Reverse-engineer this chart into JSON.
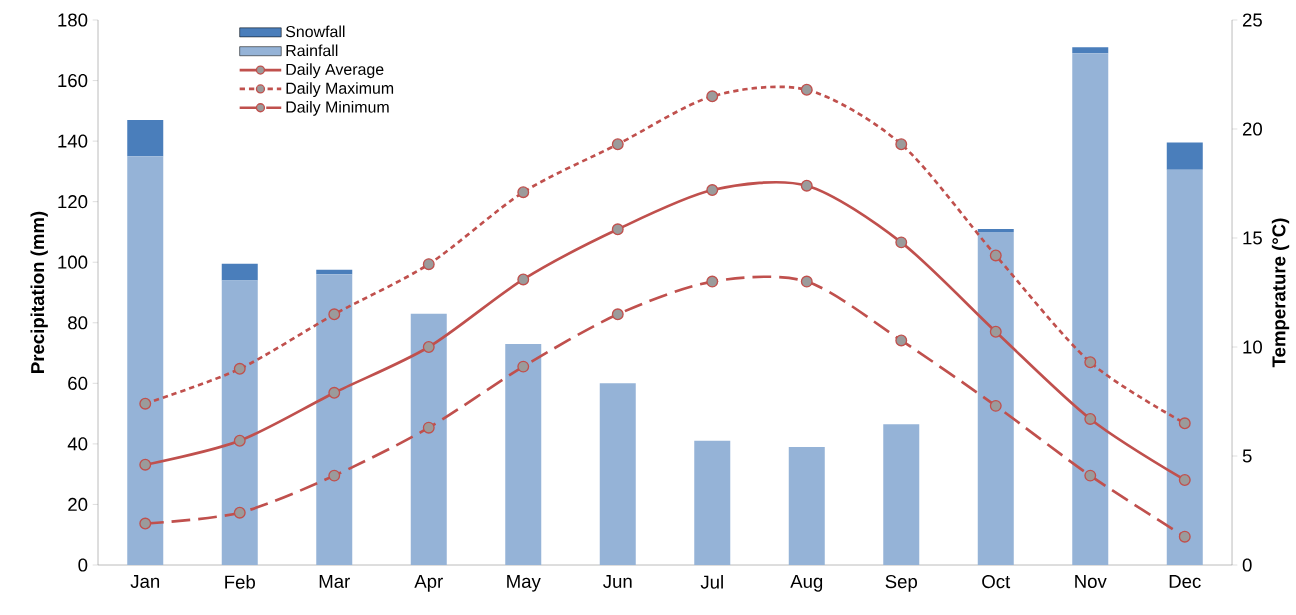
{
  "chart_data": {
    "type": "bar",
    "categories": [
      "Jan",
      "Feb",
      "Mar",
      "Apr",
      "May",
      "Jun",
      "Jul",
      "Aug",
      "Sep",
      "Oct",
      "Nov",
      "Dec"
    ],
    "stacked": true,
    "ylabel": "Precipitation (mm)",
    "y2label": "Temperature (°C)",
    "ylim": [
      0,
      180
    ],
    "yticks": [
      0,
      20,
      40,
      60,
      80,
      100,
      120,
      140,
      160,
      180
    ],
    "y2lim": [
      0,
      25
    ],
    "y2ticks": [
      0,
      5,
      10,
      15,
      20,
      25
    ],
    "legend": "top left",
    "series": [
      {
        "name": "Rainfall",
        "color": "#95b3d7",
        "values": [
          135,
          94,
          96,
          83,
          73,
          60,
          41,
          39,
          46.5,
          110,
          169,
          130.5
        ]
      },
      {
        "name": "Snowfall",
        "color": "#4a7ebb",
        "values": [
          12,
          5.5,
          1.5,
          0,
          0,
          0,
          0,
          0,
          0,
          1,
          2,
          9
        ]
      },
      {
        "name": "Daily Average",
        "type": "line",
        "axis": "y2",
        "color": "#c0504d",
        "line_style": "solid",
        "marker": "circle",
        "values": [
          4.6,
          5.7,
          7.9,
          10.0,
          13.1,
          15.4,
          17.2,
          17.4,
          14.8,
          10.7,
          6.7,
          3.9
        ]
      },
      {
        "name": "Daily Maximum",
        "type": "line",
        "axis": "y2",
        "color": "#c0504d",
        "line_style": "dotted",
        "marker": "circle",
        "values": [
          7.4,
          9.0,
          11.5,
          13.8,
          17.1,
          19.3,
          21.5,
          21.8,
          19.3,
          14.2,
          9.3,
          6.5
        ]
      },
      {
        "name": "Daily Minimum",
        "type": "line",
        "axis": "y2",
        "color": "#c0504d",
        "line_style": "dashed",
        "marker": "circle",
        "values": [
          1.9,
          2.4,
          4.1,
          6.3,
          9.1,
          11.5,
          13.0,
          13.0,
          10.3,
          7.3,
          4.1,
          1.3
        ]
      }
    ]
  }
}
